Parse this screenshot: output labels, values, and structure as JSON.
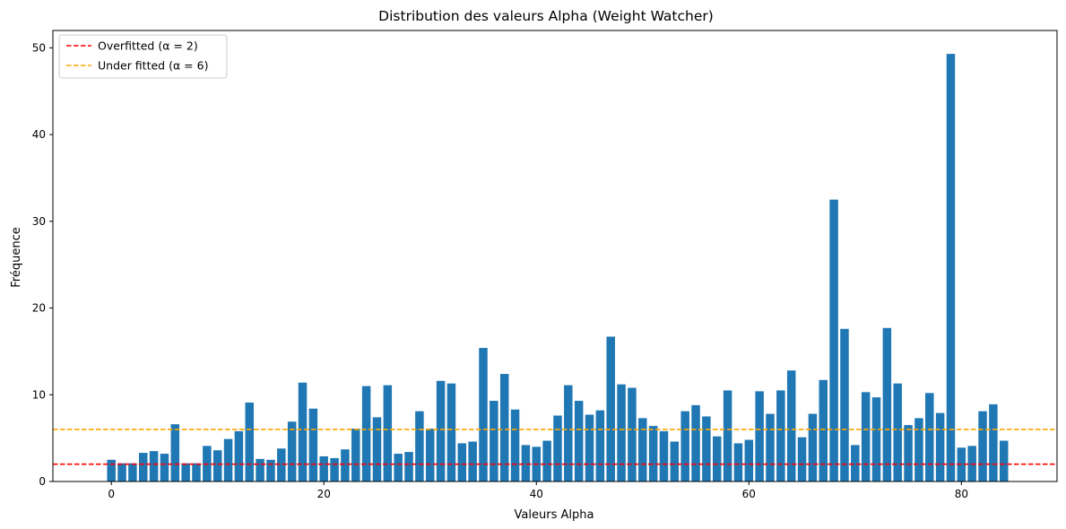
{
  "chart_data": {
    "type": "bar",
    "title": "Distribution des valeurs Alpha (Weight Watcher)",
    "xlabel": "Valeurs Alpha",
    "ylabel": "Fréquence",
    "xlim": [
      -5.5,
      89
    ],
    "ylim": [
      0,
      52
    ],
    "xticks": [
      0,
      20,
      40,
      60,
      80
    ],
    "yticks": [
      0,
      10,
      20,
      30,
      40,
      50
    ],
    "bar_color": "#1f77b4",
    "x": [
      0,
      1,
      2,
      3,
      4,
      5,
      6,
      7,
      8,
      9,
      10,
      11,
      12,
      13,
      14,
      15,
      16,
      17,
      18,
      19,
      20,
      21,
      22,
      23,
      24,
      25,
      26,
      27,
      28,
      29,
      30,
      31,
      32,
      33,
      34,
      35,
      36,
      37,
      38,
      39,
      40,
      41,
      42,
      43,
      44,
      45,
      46,
      47,
      48,
      49,
      50,
      51,
      52,
      53,
      54,
      55,
      56,
      57,
      58,
      59,
      60,
      61,
      62,
      63,
      64,
      65,
      66,
      67,
      68,
      69,
      70,
      71,
      72,
      73,
      74,
      75,
      76,
      77,
      78,
      79,
      80,
      81,
      82,
      83,
      84
    ],
    "values": [
      2.5,
      2.1,
      2.1,
      3.3,
      3.5,
      3.2,
      6.6,
      2.1,
      2.1,
      4.1,
      3.6,
      4.9,
      5.8,
      9.1,
      2.6,
      2.5,
      3.8,
      6.9,
      11.4,
      8.4,
      2.9,
      2.7,
      3.7,
      6.1,
      11.0,
      7.4,
      11.1,
      3.2,
      3.4,
      8.1,
      6.1,
      11.6,
      11.3,
      4.4,
      4.6,
      15.4,
      9.3,
      12.4,
      8.3,
      4.2,
      4.0,
      4.7,
      7.6,
      11.1,
      9.3,
      7.7,
      8.2,
      16.7,
      11.2,
      10.8,
      7.3,
      6.4,
      5.8,
      4.6,
      8.1,
      8.8,
      7.5,
      5.2,
      10.5,
      4.4,
      4.8,
      10.4,
      7.8,
      10.5,
      12.8,
      5.1,
      7.8,
      11.7,
      32.5,
      17.6,
      4.2,
      10.3,
      9.7,
      17.7,
      11.3,
      6.5,
      7.3,
      10.2,
      7.9,
      49.3,
      3.9,
      4.1,
      8.1,
      8.9,
      4.7
    ],
    "hlines": [
      {
        "y": 2,
        "color": "#ff0000",
        "style": "dashed"
      },
      {
        "y": 6,
        "color": "#ffa500",
        "style": "dashed"
      }
    ],
    "legend": {
      "position": "top-left",
      "entries": [
        {
          "label": "Overfitted (α = 2)",
          "color": "#ff0000"
        },
        {
          "label": "Under fitted (α = 6)",
          "color": "#ffa500"
        }
      ]
    },
    "grid": false
  }
}
